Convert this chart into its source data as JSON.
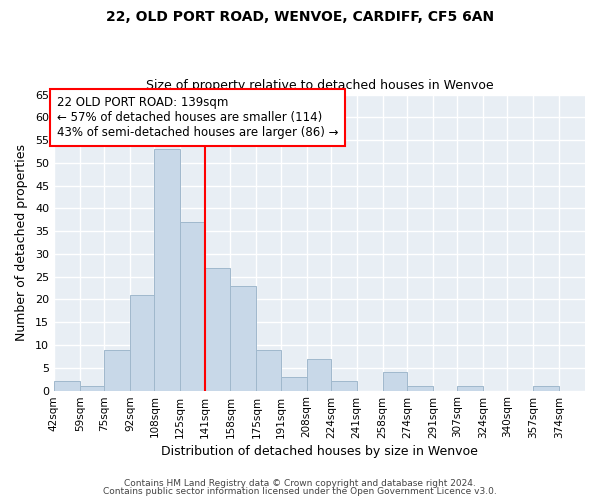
{
  "title": "22, OLD PORT ROAD, WENVOE, CARDIFF, CF5 6AN",
  "subtitle": "Size of property relative to detached houses in Wenvoe",
  "xlabel": "Distribution of detached houses by size in Wenvoe",
  "ylabel": "Number of detached properties",
  "footer_line1": "Contains HM Land Registry data © Crown copyright and database right 2024.",
  "footer_line2": "Contains public sector information licensed under the Open Government Licence v3.0.",
  "bin_labels": [
    "42sqm",
    "59sqm",
    "75sqm",
    "92sqm",
    "108sqm",
    "125sqm",
    "141sqm",
    "158sqm",
    "175sqm",
    "191sqm",
    "208sqm",
    "224sqm",
    "241sqm",
    "258sqm",
    "274sqm",
    "291sqm",
    "307sqm",
    "324sqm",
    "340sqm",
    "357sqm",
    "374sqm"
  ],
  "bin_edges": [
    42,
    59,
    75,
    92,
    108,
    125,
    141,
    158,
    175,
    191,
    208,
    224,
    241,
    258,
    274,
    291,
    307,
    324,
    340,
    357,
    374
  ],
  "counts": [
    2,
    1,
    9,
    21,
    53,
    37,
    27,
    23,
    9,
    3,
    7,
    2,
    0,
    4,
    1,
    0,
    1,
    0,
    0,
    1
  ],
  "bar_color": "#c8d8e8",
  "bar_edgecolor": "#a0b8cc",
  "vline_x": 141,
  "vline_color": "red",
  "annotation_title": "22 OLD PORT ROAD: 139sqm",
  "annotation_line1": "← 57% of detached houses are smaller (114)",
  "annotation_line2": "43% of semi-detached houses are larger (86) →",
  "annotation_box_edgecolor": "red",
  "ylim": [
    0,
    65
  ],
  "yticks": [
    0,
    5,
    10,
    15,
    20,
    25,
    30,
    35,
    40,
    45,
    50,
    55,
    60,
    65
  ],
  "background_color": "#ffffff",
  "plot_background": "#e8eef4",
  "grid_color": "#ffffff"
}
